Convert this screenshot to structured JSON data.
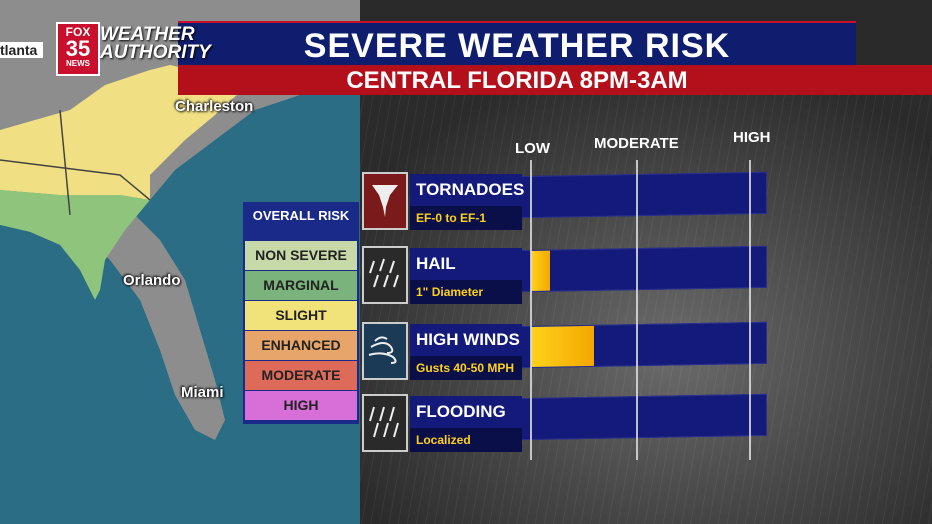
{
  "header": {
    "title": "SEVERE WEATHER RISK",
    "subtitle": "CENTRAL FLORIDA 8PM-3AM",
    "logo_network": "FOX",
    "logo_number": "35",
    "logo_news": "NEWS",
    "logo_text": "WEATHER AUTHORITY",
    "partial_city": "tlanta"
  },
  "map": {
    "cities": [
      "Charleston",
      "Orlando",
      "Miami"
    ],
    "risk_colors": {
      "marginal": "#8fc47c",
      "slight": "#f0e083"
    }
  },
  "legend": {
    "title": "OVERALL RISK",
    "items": [
      {
        "label": "NON SEVERE",
        "color": "#c7d8a9"
      },
      {
        "label": "MARGINAL",
        "color": "#7ab47c"
      },
      {
        "label": "SLIGHT",
        "color": "#f2e27a"
      },
      {
        "label": "ENHANCED",
        "color": "#e8a569"
      },
      {
        "label": "MODERATE",
        "color": "#de6a5a"
      },
      {
        "label": "HIGH",
        "color": "#d86fd9"
      }
    ]
  },
  "scale": {
    "low": "LOW",
    "moderate": "MODERATE",
    "high": "HIGH"
  },
  "threats": [
    {
      "name": "TORNADOES",
      "detail": "EF-0 to EF-1",
      "level": 0.0,
      "icon": "tornado-icon"
    },
    {
      "name": "HAIL",
      "detail": "1\" Diameter",
      "level": 0.08,
      "icon": "hail-icon"
    },
    {
      "name": "HIGH WINDS",
      "detail": "Gusts 40-50 MPH",
      "level": 0.27,
      "icon": "wind-icon"
    },
    {
      "name": "FLOODING",
      "detail": "Localized",
      "level": 0.0,
      "icon": "rain-icon"
    }
  ]
}
